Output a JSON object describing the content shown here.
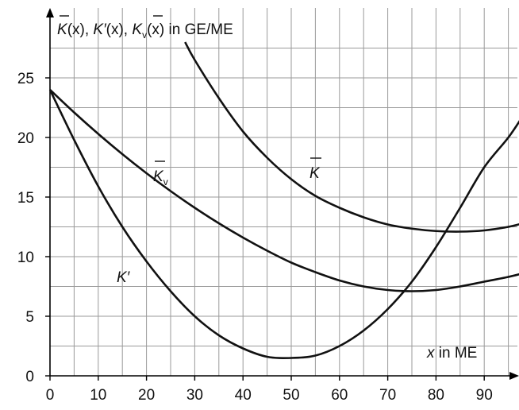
{
  "chart_data": {
    "type": "line",
    "ylabel": "K̄(x), K′(x), K̄ᵥ(x) in GE/ME",
    "ylabel_parts": {
      "k1": "K",
      "p1": "(x), ",
      "k2": "K′",
      "p2": "(x), ",
      "k3": "K",
      "sub3": "v",
      "p3": "(x) in GE/ME"
    },
    "xlabel": "x in ME",
    "xlabel_parts": {
      "var": "x",
      "rest": " in ME"
    },
    "xlim": [
      0,
      98
    ],
    "ylim": [
      0,
      29
    ],
    "x_ticks": [
      0,
      10,
      20,
      30,
      40,
      50,
      60,
      70,
      80,
      90
    ],
    "y_ticks": [
      0,
      5,
      10,
      15,
      20,
      25
    ],
    "grid": true,
    "series": [
      {
        "name": "K̄",
        "label_parts": {
          "main": "K",
          "sub": ""
        },
        "x": [
          28,
          30,
          35,
          40,
          45,
          50,
          55,
          60,
          65,
          70,
          75,
          80,
          85,
          90,
          95,
          98
        ],
        "y": [
          28.0,
          26.5,
          23.3,
          20.5,
          18.3,
          16.5,
          15.1,
          14.1,
          13.3,
          12.7,
          12.35,
          12.15,
          12.1,
          12.2,
          12.5,
          12.8
        ]
      },
      {
        "name": "K̄ᵥ",
        "label_parts": {
          "main": "K",
          "sub": "v"
        },
        "x": [
          0,
          5,
          10,
          15,
          20,
          25,
          30,
          35,
          40,
          45,
          50,
          55,
          60,
          65,
          70,
          75,
          80,
          85,
          90,
          95,
          98
        ],
        "y": [
          24,
          22.1,
          20.3,
          18.6,
          17.0,
          15.5,
          14.1,
          12.8,
          11.6,
          10.5,
          9.5,
          8.7,
          8.0,
          7.5,
          7.2,
          7.1,
          7.2,
          7.5,
          7.9,
          8.3,
          8.6
        ]
      },
      {
        "name": "K′",
        "label_parts": {
          "main": "K′",
          "sub": ""
        },
        "x": [
          0,
          5,
          10,
          15,
          20,
          25,
          30,
          35,
          40,
          45,
          50,
          55,
          60,
          65,
          70,
          75,
          80,
          85,
          90,
          95,
          98
        ],
        "y": [
          24,
          19.8,
          15.9,
          12.5,
          9.6,
          7.1,
          5.0,
          3.4,
          2.3,
          1.6,
          1.5,
          1.7,
          2.5,
          3.8,
          5.6,
          7.9,
          10.8,
          14.1,
          17.5,
          20.0,
          21.8
        ]
      }
    ]
  }
}
